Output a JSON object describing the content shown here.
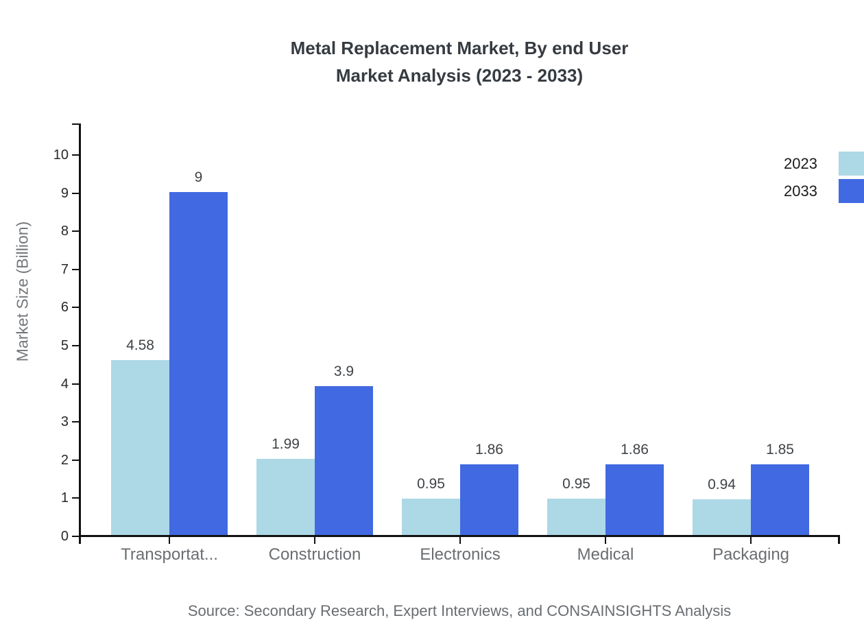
{
  "title": {
    "text": "Metal Replacement Market, By end User\nMarket Analysis (2023 - 2033)"
  },
  "y_axis_title": "Market Size (Billion)",
  "source_note": "Source: Secondary Research, Expert Interviews, and CONSAINSIGHTS Analysis",
  "legend": {
    "items": [
      {
        "label": "2023",
        "color": "#ADD8E6"
      },
      {
        "label": "2033",
        "color": "#4169E1"
      }
    ]
  },
  "chart_data": {
    "type": "bar",
    "title": "Metal Replacement Market, By end User Market Analysis (2023 - 2033)",
    "categories": [
      "Transportat...",
      "Construction",
      "Electronics",
      "Medical",
      "Packaging"
    ],
    "series": [
      {
        "name": "2023",
        "color": "#ADD8E6",
        "values": [
          4.58,
          1.99,
          0.95,
          0.95,
          0.94
        ]
      },
      {
        "name": "2033",
        "color": "#4169E1",
        "values": [
          9,
          3.9,
          1.86,
          1.86,
          1.85
        ]
      }
    ],
    "xlabel": "",
    "ylabel": "Market Size (Billion)",
    "ylim": [
      0,
      10.8
    ],
    "yticks": [
      0,
      1,
      2,
      3,
      4,
      5,
      6,
      7,
      8,
      9,
      10
    ],
    "grid": false,
    "legend_position": "top-right",
    "value_labels": true
  }
}
